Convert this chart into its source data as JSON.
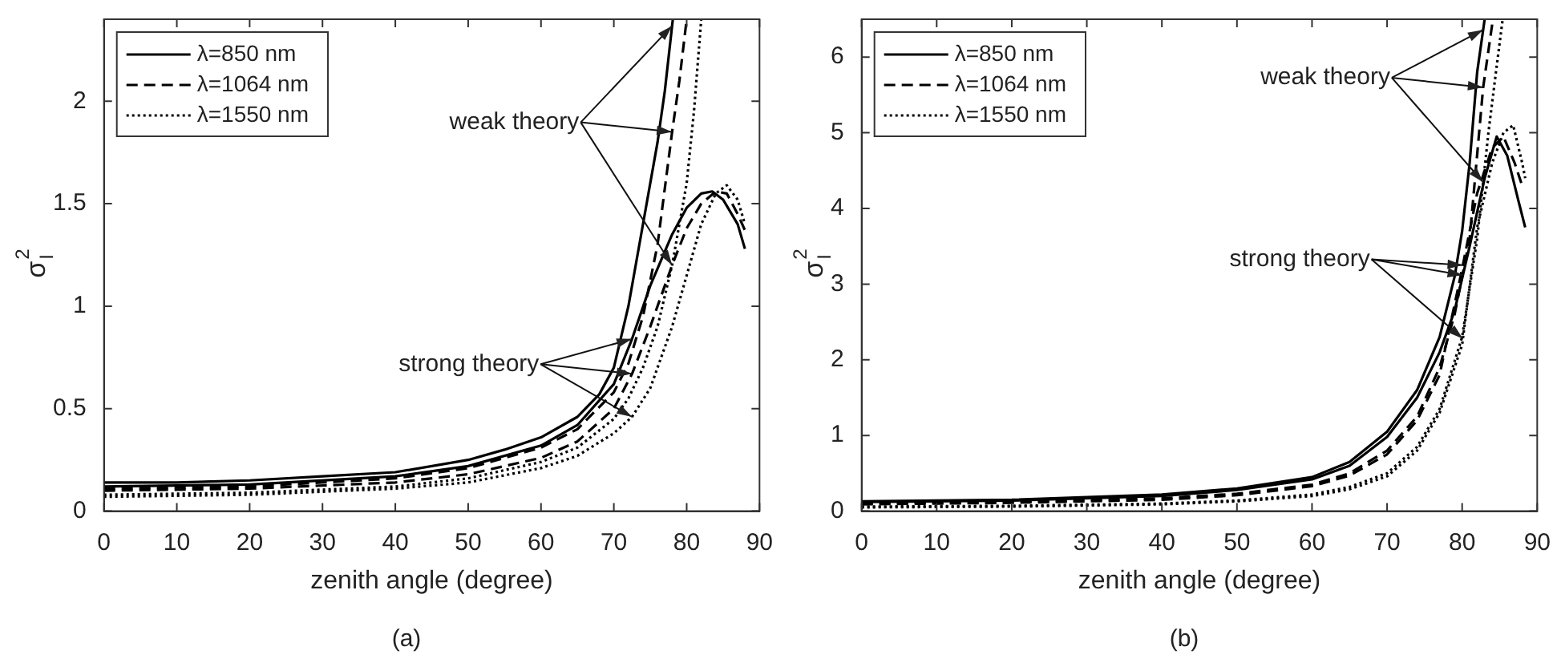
{
  "chart_data": [
    {
      "type": "line",
      "title": "(a)",
      "xlabel": "zenith angle (degree)",
      "ylabel": "σ$_{I}$$^{2}$",
      "xlim": [
        0,
        90
      ],
      "xticks": [
        0,
        10,
        20,
        30,
        40,
        50,
        60,
        70,
        80,
        90
      ],
      "ylim": [
        0,
        2.4
      ],
      "yticks": [
        0,
        0.5,
        1,
        1.5,
        2
      ],
      "legend": "top left",
      "annotations": [
        {
          "text": "weak theory",
          "x": 78,
          "y": 1.85
        },
        {
          "text": "strong theory",
          "x": 72.5,
          "y": 0.67
        }
      ],
      "series": [
        {
          "name": "λ=850 nm",
          "color": "#000000",
          "line_style": "solid",
          "x": [
            0,
            10,
            20,
            30,
            40,
            50,
            55,
            60,
            65,
            68,
            70,
            72,
            74,
            76,
            77,
            78.1
          ],
          "values": [
            0.14,
            0.14,
            0.15,
            0.17,
            0.19,
            0.25,
            0.3,
            0.36,
            0.46,
            0.57,
            0.7,
            1.0,
            1.4,
            1.8,
            2.05,
            2.4
          ]
        },
        {
          "name": "λ=1064 nm",
          "color": "#000000",
          "line_style": "dashed",
          "x": [
            0,
            20,
            40,
            50,
            60,
            65,
            70,
            72,
            74,
            76,
            78,
            79,
            80
          ],
          "values": [
            0.11,
            0.12,
            0.16,
            0.21,
            0.31,
            0.4,
            0.58,
            0.72,
            0.95,
            1.3,
            1.85,
            2.1,
            2.4
          ]
        },
        {
          "name": "λ=1550 nm",
          "color": "#000000",
          "line_style": "dotted",
          "x": [
            0,
            20,
            40,
            50,
            60,
            65,
            70,
            72,
            74,
            76,
            78,
            80,
            81,
            82
          ],
          "values": [
            0.08,
            0.09,
            0.12,
            0.16,
            0.24,
            0.31,
            0.45,
            0.55,
            0.7,
            0.9,
            1.2,
            1.6,
            1.95,
            2.4
          ]
        },
        {
          "color": "#000000",
          "line_style": "solid",
          "x": [
            0,
            20,
            40,
            50,
            60,
            65,
            70,
            72.5,
            75,
            78,
            80,
            82,
            83.5,
            85,
            87,
            88
          ],
          "values": [
            0.12,
            0.13,
            0.17,
            0.22,
            0.32,
            0.42,
            0.62,
            0.84,
            1.1,
            1.35,
            1.48,
            1.55,
            1.56,
            1.52,
            1.4,
            1.28
          ]
        },
        {
          "color": "#000000",
          "line_style": "dashed",
          "x": [
            0,
            20,
            40,
            50,
            60,
            65,
            70,
            72.5,
            75,
            78,
            80,
            82,
            84,
            85.5,
            87,
            88
          ],
          "values": [
            0.1,
            0.11,
            0.14,
            0.18,
            0.26,
            0.34,
            0.5,
            0.67,
            0.9,
            1.2,
            1.38,
            1.5,
            1.56,
            1.55,
            1.45,
            1.37
          ]
        },
        {
          "color": "#000000",
          "line_style": "dotted",
          "x": [
            0,
            20,
            40,
            50,
            60,
            65,
            70,
            72.5,
            75,
            78,
            80,
            82,
            84,
            85.5,
            87,
            88
          ],
          "values": [
            0.07,
            0.08,
            0.11,
            0.14,
            0.21,
            0.27,
            0.38,
            0.46,
            0.6,
            0.9,
            1.15,
            1.4,
            1.55,
            1.59,
            1.52,
            1.4
          ]
        }
      ]
    },
    {
      "type": "line",
      "title": "(b)",
      "xlabel": "zenith angle (degree)",
      "ylabel": "σ$_{I}$$^{2}$",
      "xlim": [
        0,
        90
      ],
      "xticks": [
        0,
        10,
        20,
        30,
        40,
        50,
        60,
        70,
        80,
        90
      ],
      "ylim": [
        0,
        6.5
      ],
      "yticks": [
        0,
        1,
        2,
        3,
        4,
        5,
        6
      ],
      "legend": "top left",
      "annotations": [
        {
          "text": "weak theory",
          "x": 82.8,
          "y": 5.6
        },
        {
          "text": "strong theory",
          "x": 80.1,
          "y": 3.2
        }
      ],
      "series": [
        {
          "name": "λ=850 nm",
          "color": "#000000",
          "line_style": "solid",
          "x": [
            0,
            20,
            40,
            50,
            60,
            65,
            70,
            74,
            77,
            79,
            80,
            81,
            82,
            83
          ],
          "values": [
            0.13,
            0.15,
            0.22,
            0.3,
            0.45,
            0.65,
            1.05,
            1.6,
            2.3,
            3.1,
            3.7,
            4.6,
            5.8,
            6.5
          ]
        },
        {
          "name": "λ=1064 nm",
          "color": "#000000",
          "line_style": "dashed",
          "x": [
            0,
            20,
            40,
            50,
            60,
            65,
            70,
            74,
            77,
            79,
            81,
            82.8,
            84.1
          ],
          "values": [
            0.1,
            0.12,
            0.17,
            0.23,
            0.35,
            0.5,
            0.8,
            1.25,
            1.9,
            2.6,
            3.6,
            5.6,
            6.5
          ]
        },
        {
          "name": "λ=1550 nm",
          "color": "#000000",
          "line_style": "dotted",
          "x": [
            0,
            20,
            40,
            50,
            60,
            65,
            70,
            74,
            77,
            80,
            82,
            83.5,
            84.5,
            85.4
          ],
          "values": [
            0.06,
            0.07,
            0.1,
            0.14,
            0.22,
            0.32,
            0.5,
            0.85,
            1.35,
            2.3,
            3.6,
            5.0,
            5.8,
            6.5
          ]
        },
        {
          "color": "#000000",
          "line_style": "solid",
          "x": [
            0,
            20,
            40,
            50,
            60,
            65,
            70,
            74,
            77,
            79,
            81,
            83,
            84.6,
            86,
            87.5,
            88.4
          ],
          "values": [
            0.12,
            0.14,
            0.2,
            0.28,
            0.42,
            0.6,
            0.98,
            1.5,
            2.1,
            2.65,
            3.5,
            4.4,
            4.95,
            4.7,
            4.1,
            3.75
          ]
        },
        {
          "color": "#000000",
          "line_style": "dashed",
          "x": [
            0,
            20,
            40,
            50,
            60,
            65,
            70,
            74,
            77,
            80,
            82,
            84,
            85.5,
            87,
            88
          ],
          "values": [
            0.09,
            0.11,
            0.15,
            0.21,
            0.33,
            0.47,
            0.75,
            1.2,
            1.8,
            3.2,
            4.2,
            4.8,
            4.95,
            4.6,
            4.3
          ]
        },
        {
          "color": "#000000",
          "line_style": "dotted",
          "x": [
            0,
            20,
            40,
            50,
            60,
            65,
            70,
            74,
            77,
            80,
            82,
            84,
            85.5,
            86.8,
            88,
            88.4
          ],
          "values": [
            0.05,
            0.06,
            0.09,
            0.13,
            0.2,
            0.29,
            0.46,
            0.8,
            1.3,
            2.2,
            3.75,
            4.6,
            5.0,
            5.1,
            4.6,
            4.4
          ]
        }
      ]
    }
  ]
}
